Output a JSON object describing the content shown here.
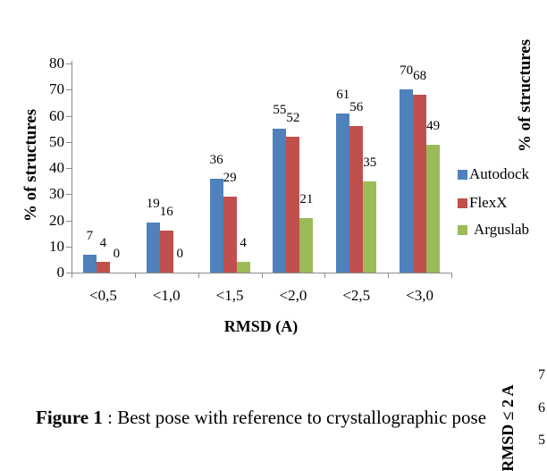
{
  "figure_caption": {
    "label": "Figure 1",
    "text": " : Best pose with reference to crystallographic pose"
  },
  "chart_data": {
    "type": "bar",
    "title": "",
    "categories": [
      "<0,5",
      "<1,0",
      "<1,5",
      "<2,0",
      "<2,5",
      "<3,0"
    ],
    "series": [
      {
        "name": "Autodock",
        "color": "#4F81BD",
        "values": [
          7,
          19,
          36,
          55,
          61,
          70
        ]
      },
      {
        "name": "FlexX",
        "color": "#C0504D",
        "values": [
          4,
          16,
          29,
          52,
          56,
          68
        ]
      },
      {
        "name": "Arguslab",
        "color": "#9BBB59",
        "values": [
          0,
          0,
          4,
          21,
          35,
          49
        ]
      }
    ],
    "xlabel": "RMSD (A)",
    "ylabel": "% of structures",
    "ylim": [
      0,
      80
    ],
    "yticks": [
      0,
      10,
      20,
      30,
      40,
      50,
      60,
      70,
      80
    ],
    "grid": false,
    "legend_position": "right",
    "data_labels": true,
    "axis_color": "#8c8c8c",
    "text_color": "#000000"
  },
  "partial_next_chart": {
    "ylabel": "% of structures",
    "rotated_axis_label": "RMSD ≤ 2 A",
    "visible_tick_labels": [
      "7",
      "6",
      "5"
    ]
  }
}
